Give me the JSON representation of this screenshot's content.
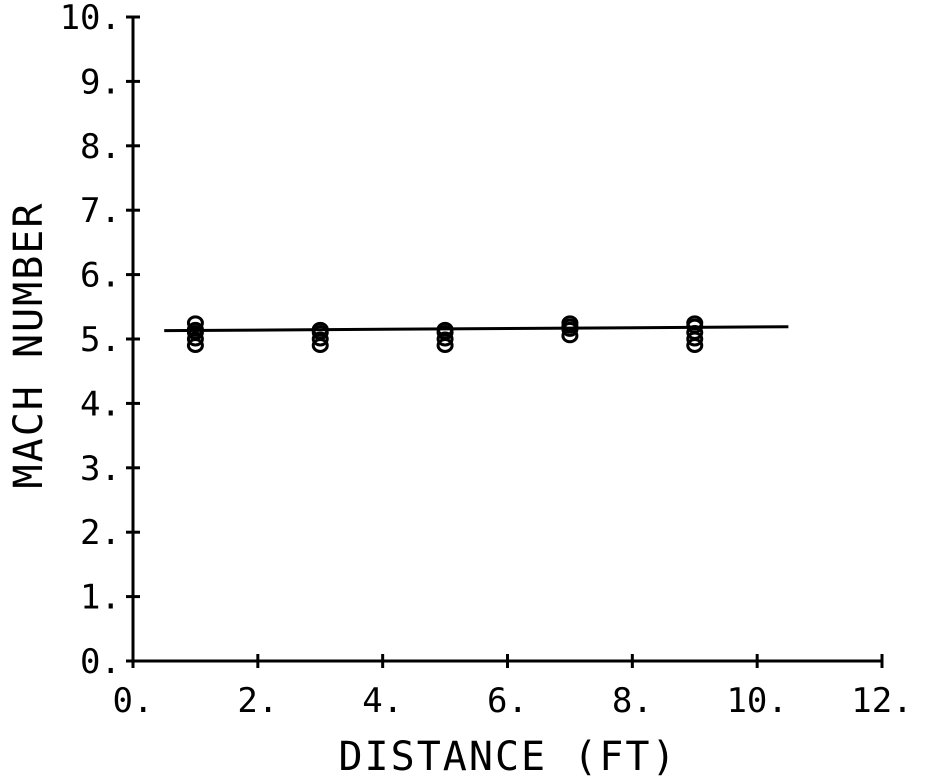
{
  "chart_data": {
    "type": "scatter",
    "title": "",
    "xlabel": "DISTANCE (FT)",
    "ylabel": "MACH NUMBER",
    "xlim": [
      0,
      12
    ],
    "ylim": [
      0,
      10
    ],
    "x_ticks": [
      0,
      2,
      4,
      6,
      8,
      10,
      12
    ],
    "x_tick_labels": [
      "0.",
      "2.",
      "4.",
      "6.",
      "8.",
      "10.",
      "12."
    ],
    "y_ticks": [
      0,
      1,
      2,
      3,
      4,
      5,
      6,
      7,
      8,
      9,
      10
    ],
    "y_tick_labels": [
      "0.",
      "1.",
      "2.",
      "3.",
      "4.",
      "5.",
      "6.",
      "7.",
      "8.",
      "9.",
      "10."
    ],
    "grid": false,
    "series": [
      {
        "marker": "circle",
        "points": [
          [
            1,
            4.9
          ],
          [
            1,
            5.0
          ],
          [
            1,
            5.1
          ],
          [
            1,
            5.15
          ],
          [
            1,
            5.25
          ],
          [
            3,
            4.9
          ],
          [
            3,
            5.0
          ],
          [
            3,
            5.1
          ],
          [
            3,
            5.15
          ],
          [
            5,
            4.9
          ],
          [
            5,
            5.0
          ],
          [
            5,
            5.1
          ],
          [
            5,
            5.15
          ],
          [
            7,
            5.05
          ],
          [
            7,
            5.15
          ],
          [
            7,
            5.2
          ],
          [
            7,
            5.25
          ],
          [
            9,
            4.9
          ],
          [
            9,
            5.0
          ],
          [
            9,
            5.1
          ],
          [
            9,
            5.2
          ],
          [
            9,
            5.25
          ]
        ]
      },
      {
        "line": true,
        "points": [
          [
            0.5,
            5.13
          ],
          [
            10.5,
            5.19
          ]
        ]
      }
    ]
  }
}
